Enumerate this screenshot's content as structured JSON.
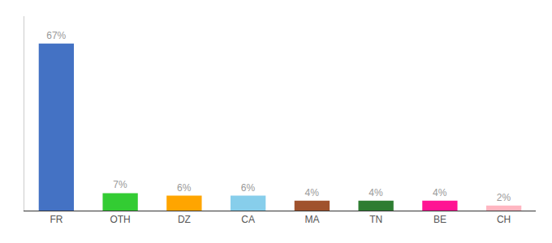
{
  "chart_data": {
    "type": "bar",
    "categories": [
      "FR",
      "OTH",
      "DZ",
      "CA",
      "MA",
      "TN",
      "BE",
      "CH"
    ],
    "values": [
      67,
      7,
      6,
      6,
      4,
      4,
      4,
      2
    ],
    "value_labels": [
      "67%",
      "7%",
      "6%",
      "6%",
      "4%",
      "4%",
      "4%",
      "2%"
    ],
    "colors": [
      "#4472C4",
      "#33CC33",
      "#FFA500",
      "#87CEEB",
      "#A0522D",
      "#2E7D32",
      "#FF1493",
      "#FFB6C1"
    ],
    "ylim": [
      0,
      78
    ],
    "data_labels": true,
    "tick_labels": "x",
    "grid": false
  }
}
